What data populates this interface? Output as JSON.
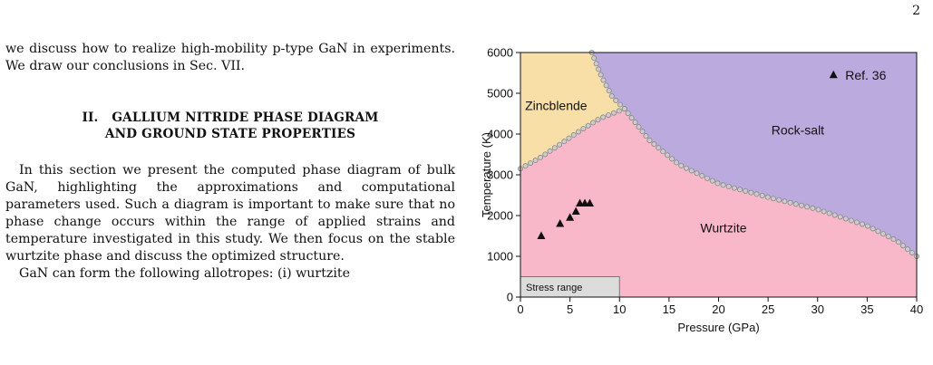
{
  "page_number": "2",
  "text": {
    "para1": "we discuss how to realize high-mobility p-type GaN in experiments. We draw our conclusions in Sec. VII.",
    "section_number": "II.",
    "section_title_line1": "GALLIUM NITRIDE PHASE DIAGRAM",
    "section_title_line2": "AND GROUND STATE PROPERTIES",
    "para2": "In this section we present the computed phase diagram of bulk GaN, highlighting the approximations and computational parameters used. Such a diagram is important to make sure that no phase change occurs within the range of applied strains and temperature investigated in this study. We then focus on the stable wurtzite phase and discuss the optimized structure.",
    "para3": "GaN can form the following allotropes: (i) wurtzite"
  },
  "chart_data": {
    "type": "scatter",
    "xlabel": "Pressure (GPa)",
    "ylabel": "Temperature (K)",
    "xlim": [
      0,
      40
    ],
    "ylim": [
      0,
      6000
    ],
    "xticks": [
      0,
      5,
      10,
      15,
      20,
      25,
      30,
      35,
      40
    ],
    "yticks": [
      0,
      1000,
      2000,
      3000,
      4000,
      5000,
      6000
    ],
    "legend": {
      "label": "Ref. 36",
      "marker": "triangle",
      "placement": "top-right"
    },
    "regions": [
      {
        "name": "Zincblende",
        "color": "#f8dfa8",
        "label_at": [
          3.6,
          4700
        ]
      },
      {
        "name": "Rock-salt",
        "color": "#bbaade",
        "label_at": [
          28,
          4100
        ]
      },
      {
        "name": "Wurtzite",
        "color": "#f9b8c9",
        "label_at": [
          20.5,
          1700
        ]
      }
    ],
    "stress_range": {
      "label": "Stress range",
      "x": [
        0,
        10
      ],
      "y": [
        0,
        500
      ],
      "color": "#dcdcdc"
    },
    "boundaries": {
      "wurtzite_zincblende": [
        [
          0,
          3150
        ],
        [
          2,
          3420
        ],
        [
          4,
          3750
        ],
        [
          6,
          4080
        ],
        [
          8,
          4380
        ],
        [
          10.5,
          4620
        ]
      ],
      "zincblende_rocksalt": [
        [
          7.2,
          6000
        ],
        [
          8.2,
          5400
        ],
        [
          9.3,
          4900
        ],
        [
          10.5,
          4620
        ]
      ],
      "wurtzite_rocksalt": [
        [
          10.5,
          4620
        ],
        [
          13,
          3850
        ],
        [
          16,
          3250
        ],
        [
          20,
          2780
        ],
        [
          25,
          2450
        ],
        [
          30,
          2150
        ],
        [
          35,
          1750
        ],
        [
          38,
          1380
        ],
        [
          40,
          1000
        ]
      ]
    },
    "series": [
      {
        "name": "Ref. 36",
        "x": [
          2.1,
          4.0,
          5.0,
          5.6,
          6.0,
          6.5,
          7.0
        ],
        "y": [
          1500,
          1800,
          1950,
          2100,
          2300,
          2300,
          2300
        ]
      }
    ],
    "colors": {
      "boundary_marker": "#cccccc",
      "boundary_stroke": "#888888",
      "triangle": "#111111"
    }
  }
}
